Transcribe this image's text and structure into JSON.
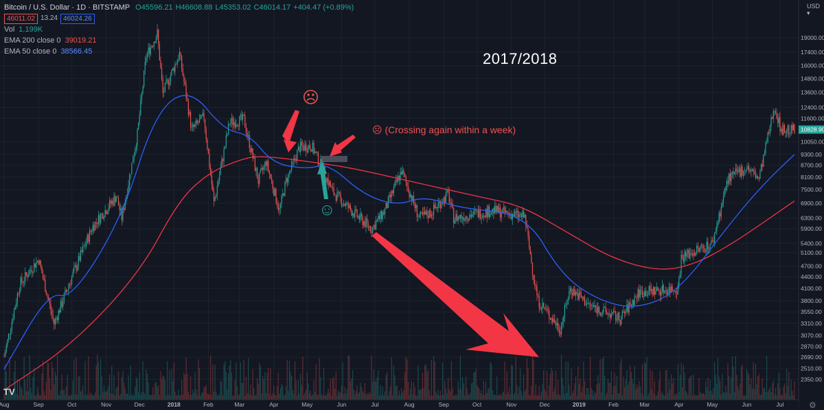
{
  "header": {
    "symbol": "Bitcoin / U.S. Dollar · 1D · BITSTAMP",
    "open": "O45596.21",
    "high": "H46608.88",
    "low": "L45353.02",
    "close": "C46014.17",
    "change": "+404.47 (+0.89%)",
    "sell_price": "46011.02",
    "spread": "13.24",
    "buy_price": "46024.26"
  },
  "indicators": {
    "vol_label": "Vol",
    "vol_value": "1.199K",
    "ema200_label": "EMA 200 close 0",
    "ema200_value": "39019.21",
    "ema50_label": "EMA 50 close 0",
    "ema50_value": "38566.45"
  },
  "currency": "USD",
  "annotations": {
    "title": "2017/2018",
    "crossing_note": "☹ (Crossing again within a week)",
    "frown": "☹",
    "smile": "☺"
  },
  "logo": "TV",
  "colors": {
    "background": "#131722",
    "up": "#26a69a",
    "down": "#ef5350",
    "ema200": "#f23645",
    "ema50": "#2962ff",
    "arrow_red": "#f23645",
    "arrow_green": "#26a69a"
  },
  "chart_data": {
    "type": "candlestick",
    "ylabel": "",
    "y_scale": "log",
    "ylim": [
      2200,
      21000
    ],
    "y_ticks": [
      "19000.00",
      "17400.00",
      "16000.00",
      "14800.00",
      "13600.00",
      "12400.00",
      "11600.00",
      "10050.00",
      "9300.00",
      "8700.00",
      "8100.00",
      "7500.00",
      "6900.00",
      "6300.00",
      "5900.00",
      "5400.00",
      "5100.00",
      "4700.00",
      "4400.00",
      "4100.00",
      "3800.00",
      "3550.00",
      "3310.00",
      "3070.00",
      "2870.00",
      "2690.00",
      "2510.00",
      "2350.00"
    ],
    "x_ticks": [
      "Aug",
      "Sep",
      "Oct",
      "Nov",
      "Dec",
      "2018",
      "Feb",
      "Mar",
      "Apr",
      "May",
      "Jun",
      "Jul",
      "Aug",
      "Sep",
      "Oct",
      "Nov",
      "Dec",
      "2019",
      "Feb",
      "Mar",
      "Apr",
      "May",
      "Jun",
      "Jul"
    ],
    "x_range": [
      "2017-08-01",
      "2019-07-14"
    ],
    "last_price_label": "10828.90",
    "price_anchors": [
      [
        "2017-08-01",
        2700
      ],
      [
        "2017-08-15",
        4200
      ],
      [
        "2017-09-01",
        4900
      ],
      [
        "2017-09-15",
        3300
      ],
      [
        "2017-10-01",
        4400
      ],
      [
        "2017-10-20",
        6000
      ],
      [
        "2017-11-10",
        7200
      ],
      [
        "2017-11-15",
        6300
      ],
      [
        "2017-11-29",
        10500
      ],
      [
        "2017-12-07",
        17000
      ],
      [
        "2017-12-17",
        19500
      ],
      [
        "2017-12-22",
        13500
      ],
      [
        "2018-01-06",
        17200
      ],
      [
        "2018-01-17",
        10800
      ],
      [
        "2018-01-28",
        11700
      ],
      [
        "2018-02-06",
        6900
      ],
      [
        "2018-02-20",
        11300
      ],
      [
        "2018-03-05",
        11500
      ],
      [
        "2018-03-18",
        7900
      ],
      [
        "2018-03-25",
        8900
      ],
      [
        "2018-04-06",
        6600
      ],
      [
        "2018-04-12",
        7900
      ],
      [
        "2018-04-24",
        9700
      ],
      [
        "2018-05-05",
        9800
      ],
      [
        "2018-05-15",
        8500
      ],
      [
        "2018-05-24",
        7400
      ],
      [
        "2018-06-12",
        6500
      ],
      [
        "2018-06-28",
        5900
      ],
      [
        "2018-07-10",
        6600
      ],
      [
        "2018-07-25",
        8400
      ],
      [
        "2018-08-10",
        6300
      ],
      [
        "2018-08-20",
        6500
      ],
      [
        "2018-09-05",
        7300
      ],
      [
        "2018-09-10",
        6300
      ],
      [
        "2018-10-15",
        6600
      ],
      [
        "2018-11-13",
        6350
      ],
      [
        "2018-11-20",
        4600
      ],
      [
        "2018-11-25",
        3800
      ],
      [
        "2018-12-15",
        3200
      ],
      [
        "2018-12-24",
        4100
      ],
      [
        "2019-01-10",
        3700
      ],
      [
        "2019-02-07",
        3400
      ],
      [
        "2019-02-24",
        4000
      ],
      [
        "2019-03-31",
        4100
      ],
      [
        "2019-04-03",
        4950
      ],
      [
        "2019-05-01",
        5400
      ],
      [
        "2019-05-15",
        8000
      ],
      [
        "2019-06-01",
        8600
      ],
      [
        "2019-06-12",
        8000
      ],
      [
        "2019-06-26",
        12500
      ],
      [
        "2019-07-02",
        10800
      ],
      [
        "2019-07-14",
        10800
      ]
    ],
    "series": [
      {
        "name": "EMA 200 close 0",
        "values": [
          [
            "2017-08-01",
            2200
          ],
          [
            "2017-10-01",
            2900
          ],
          [
            "2017-12-01",
            4500
          ],
          [
            "2018-01-05",
            7000
          ],
          [
            "2018-02-01",
            8300
          ],
          [
            "2018-03-01",
            9000
          ],
          [
            "2018-03-20",
            9250
          ],
          [
            "2018-05-15",
            8800
          ],
          [
            "2018-06-15",
            8500
          ],
          [
            "2018-08-01",
            7900
          ],
          [
            "2018-10-01",
            7200
          ],
          [
            "2018-11-10",
            6800
          ],
          [
            "2018-12-20",
            5800
          ],
          [
            "2019-02-01",
            4900
          ],
          [
            "2019-03-15",
            4550
          ],
          [
            "2019-04-15",
            4750
          ],
          [
            "2019-05-15",
            5300
          ],
          [
            "2019-06-15",
            6100
          ],
          [
            "2019-07-14",
            7000
          ]
        ]
      },
      {
        "name": "EMA 50 close 0",
        "values": [
          [
            "2017-08-01",
            2500
          ],
          [
            "2017-09-10",
            4000
          ],
          [
            "2017-10-01",
            3850
          ],
          [
            "2017-11-15",
            6300
          ],
          [
            "2017-12-15",
            12000
          ],
          [
            "2018-01-15",
            14000
          ],
          [
            "2018-02-15",
            10800
          ],
          [
            "2018-03-10",
            10500
          ],
          [
            "2018-03-31",
            8800
          ],
          [
            "2018-05-01",
            8500
          ],
          [
            "2018-05-20",
            8800
          ],
          [
            "2018-06-20",
            7300
          ],
          [
            "2018-07-20",
            6800
          ],
          [
            "2018-08-15",
            7200
          ],
          [
            "2018-09-15",
            6700
          ],
          [
            "2018-11-14",
            6450
          ],
          [
            "2018-12-15",
            4500
          ],
          [
            "2019-01-15",
            3850
          ],
          [
            "2019-02-20",
            3600
          ],
          [
            "2019-03-31",
            4000
          ],
          [
            "2019-05-15",
            6000
          ],
          [
            "2019-06-15",
            7700
          ],
          [
            "2019-07-14",
            9300
          ]
        ]
      }
    ]
  }
}
